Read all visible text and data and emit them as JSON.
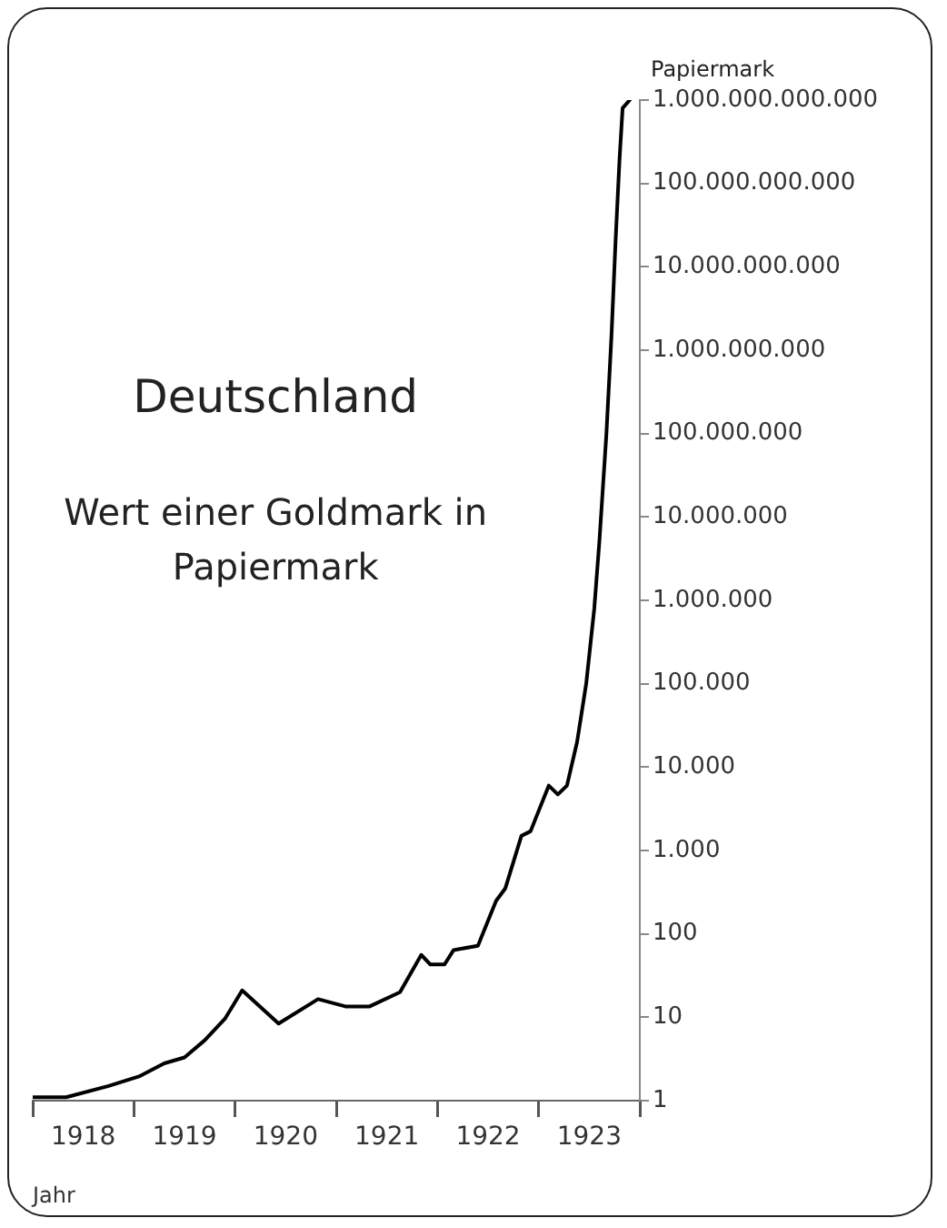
{
  "chart_data": {
    "type": "line",
    "title": "Deutschland",
    "subtitle": "Wert einer Goldmark in Papiermark",
    "xlabel": "Jahr",
    "ylabel": "Papiermark",
    "log": "y",
    "grid": false,
    "legend": false,
    "marker": "none",
    "line_style": "solid",
    "xlim": [
      1918,
      1924
    ],
    "ylim": [
      1,
      1000000000000
    ],
    "xticks": [
      {
        "value": 1918,
        "label": null
      },
      {
        "value": 1918.5,
        "label": "1918"
      },
      {
        "value": 1919,
        "label": null
      },
      {
        "value": 1919.5,
        "label": "1919"
      },
      {
        "value": 1920,
        "label": null
      },
      {
        "value": 1920.5,
        "label": "1920"
      },
      {
        "value": 1921,
        "label": null
      },
      {
        "value": 1921.5,
        "label": "1921"
      },
      {
        "value": 1922,
        "label": null
      },
      {
        "value": 1922.5,
        "label": "1922"
      },
      {
        "value": 1923,
        "label": null
      },
      {
        "value": 1923.5,
        "label": "1923"
      },
      {
        "value": 1924,
        "label": null
      }
    ],
    "yticks": [
      1,
      10,
      100,
      {
        "value": 1000,
        "label": "1.000"
      },
      {
        "value": 10000,
        "label": "10.000"
      },
      {
        "value": 100000,
        "label": "100.000"
      },
      {
        "value": 1000000,
        "label": "1.000.000"
      },
      {
        "value": 10000000,
        "label": "10.000.000"
      },
      {
        "value": 100000000,
        "label": "100.000.000"
      },
      {
        "value": 1000000000,
        "label": "1.000.000.000"
      },
      {
        "value": 10000000000,
        "label": "10.000.000.000"
      },
      {
        "value": 100000000000,
        "label": "100.000.000.000"
      },
      {
        "value": 1000000000000,
        "label": "1.000.000.000.000"
      }
    ],
    "series": [
      {
        "color": "#000000",
        "x": [
          1918.0,
          1918.33,
          1918.75,
          1919.05,
          1919.3,
          1919.5,
          1919.7,
          1919.9,
          1920.07,
          1920.43,
          1920.82,
          1921.09,
          1921.33,
          1921.63,
          1921.84,
          1921.93,
          1922.07,
          1922.16,
          1922.4,
          1922.58,
          1922.67,
          1922.83,
          1922.92,
          1923.1,
          1923.19,
          1923.28,
          1923.38,
          1923.47,
          1923.55,
          1923.6,
          1923.67,
          1923.72,
          1923.76,
          1923.8,
          1923.83,
          1923.9
        ],
        "values": [
          1.1,
          1.1,
          1.5,
          1.95,
          2.8,
          3.3,
          5.3,
          9.6,
          21,
          8.4,
          16.5,
          13.5,
          13.5,
          20,
          56,
          43,
          43,
          64,
          72,
          250,
          350,
          1500,
          1700,
          6000,
          4700,
          6000,
          20000,
          100000,
          800000,
          5000000,
          100000000,
          1500000000,
          20000000000,
          200000000000,
          800000000000,
          1000000000000
        ]
      }
    ]
  }
}
